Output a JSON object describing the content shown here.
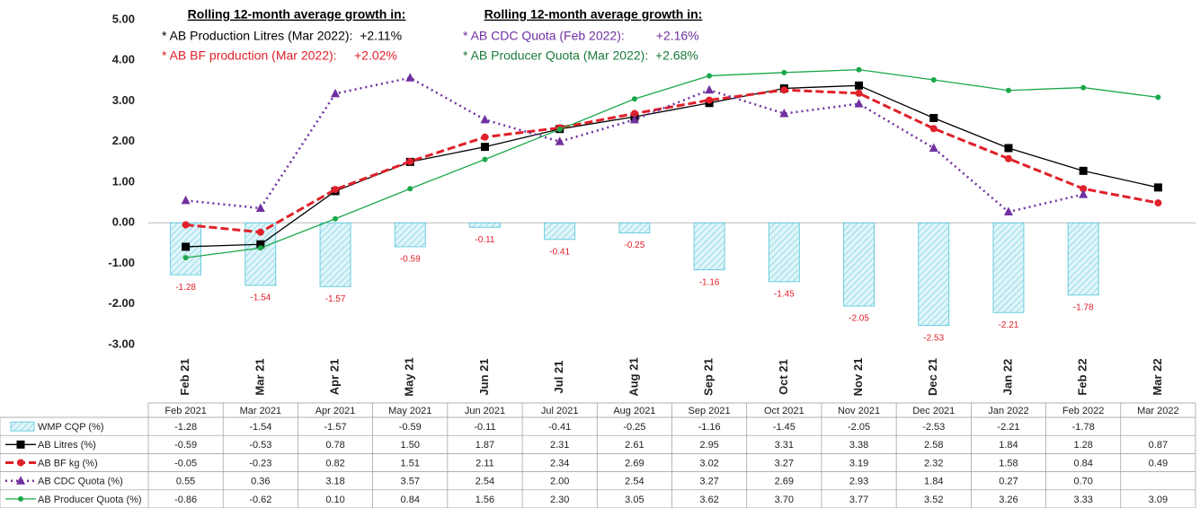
{
  "chart_data": {
    "type": "combo",
    "categories": [
      "Feb 21",
      "Mar 21",
      "Apr 21",
      "May 21",
      "Jun 21",
      "Jul 21",
      "Aug 21",
      "Sep 21",
      "Oct 21",
      "Nov 21",
      "Dec 21",
      "Jan 22",
      "Feb 22",
      "Mar 22"
    ],
    "table_headers": [
      "Feb 2021",
      "Mar 2021",
      "Apr 2021",
      "May 2021",
      "Jun 2021",
      "Jul 2021",
      "Aug 2021",
      "Sep 2021",
      "Oct 2021",
      "Nov 2021",
      "Dec 2021",
      "Jan 2022",
      "Feb 2022",
      "Mar 2022"
    ],
    "ylim": [
      -3,
      5
    ],
    "yticks": [
      {
        "value": 5,
        "label": "5.00"
      },
      {
        "value": 4,
        "label": "4.00"
      },
      {
        "value": 3,
        "label": "3.00"
      },
      {
        "value": 2,
        "label": "2.00"
      },
      {
        "value": 1,
        "label": "1.00"
      },
      {
        "value": 0,
        "label": "0.00"
      },
      {
        "value": -1,
        "label": "-1.00"
      },
      {
        "value": -2,
        "label": "-2.00"
      },
      {
        "value": -3,
        "label": "-3.00"
      }
    ],
    "series": [
      {
        "name": "WMP CQP (%)",
        "type": "bar",
        "color": "#4fc3d9",
        "values": [
          -1.28,
          -1.54,
          -1.57,
          -0.59,
          -0.11,
          -0.41,
          -0.25,
          -1.16,
          -1.45,
          -2.05,
          -2.53,
          -2.21,
          -1.78,
          null
        ],
        "value_labels": [
          "-1.28",
          "-1.54",
          "-1.57",
          "-0.59",
          "-0.11",
          "-0.41",
          "-0.25",
          "-1.16",
          "-1.45",
          "-2.05",
          "-2.53",
          "-2.21",
          "-1.78",
          null
        ]
      },
      {
        "name": "AB Litres (%)",
        "type": "line",
        "color": "#000000",
        "marker": "square",
        "dash": "solid",
        "values": [
          -0.59,
          -0.53,
          0.78,
          1.5,
          1.87,
          2.31,
          2.61,
          2.95,
          3.31,
          3.38,
          2.58,
          1.84,
          1.28,
          0.87
        ],
        "value_labels": [
          "-0.59",
          "-0.53",
          "0.78",
          "1.50",
          "1.87",
          "2.31",
          "2.61",
          "2.95",
          "3.31",
          "3.38",
          "2.58",
          "1.84",
          "1.28",
          "0.87"
        ]
      },
      {
        "name": "AB BF kg (%)",
        "type": "line",
        "color": "#e0202a",
        "marker": "circle",
        "dash": "dashed",
        "values": [
          -0.05,
          -0.23,
          0.82,
          1.51,
          2.11,
          2.34,
          2.69,
          3.02,
          3.27,
          3.19,
          2.32,
          1.58,
          0.84,
          0.49
        ],
        "value_labels": [
          "-0.05",
          "-0.23",
          "0.82",
          "1.51",
          "2.11",
          "2.34",
          "2.69",
          "3.02",
          "3.27",
          "3.19",
          "2.32",
          "1.58",
          "0.84",
          "0.49"
        ]
      },
      {
        "name": "AB CDC Quota (%)",
        "type": "line",
        "color": "#7030a0",
        "marker": "triangle",
        "dash": "dotted",
        "values": [
          0.55,
          0.36,
          3.18,
          3.57,
          2.54,
          2.0,
          2.54,
          3.27,
          2.69,
          2.93,
          1.84,
          0.27,
          0.7,
          null
        ],
        "value_labels": [
          "0.55",
          "0.36",
          "3.18",
          "3.57",
          "2.54",
          "2.00",
          "2.54",
          "3.27",
          "2.69",
          "2.93",
          "1.84",
          "0.27",
          "0.70",
          null
        ]
      },
      {
        "name": "AB Producer Quota (%)",
        "type": "line",
        "color": "#1aa84a",
        "marker": "dot",
        "dash": "solid",
        "values": [
          -0.86,
          -0.62,
          0.1,
          0.84,
          1.56,
          2.3,
          3.05,
          3.62,
          3.7,
          3.77,
          3.52,
          3.26,
          3.33,
          3.09
        ],
        "value_labels": [
          "-0.86",
          "-0.62",
          "0.10",
          "0.84",
          "1.56",
          "2.30",
          "3.05",
          "3.62",
          "3.70",
          "3.77",
          "3.52",
          "3.26",
          "3.33",
          "3.09"
        ]
      }
    ],
    "annotations": [
      {
        "title": "Rolling 12-month average growth in:",
        "lines": [
          {
            "text": "* AB Production Litres (Mar 2022):  +2.11%",
            "color": "#000000"
          },
          {
            "text": "* AB BF production (Mar 2022):     +2.02%",
            "color": "#e0202a"
          }
        ]
      },
      {
        "title": "Rolling 12-month average growth in:",
        "lines": [
          {
            "text": "* AB CDC Quota (Feb 2022):         +2.16%",
            "color": "#7030a0"
          },
          {
            "text": "* AB Producer Quota (Mar 2022):  +2.68%",
            "color": "#1a7a3a"
          }
        ]
      }
    ]
  }
}
